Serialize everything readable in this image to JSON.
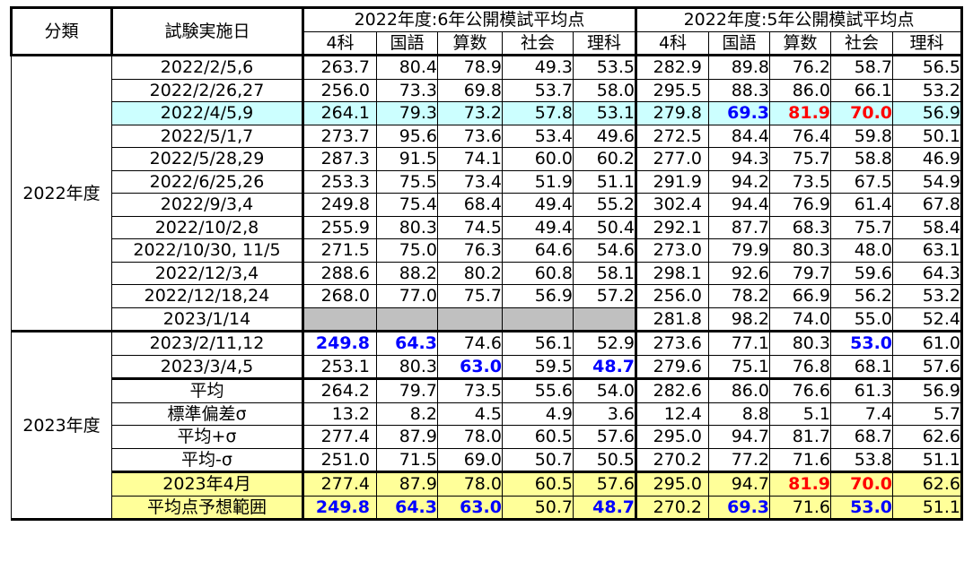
{
  "headers": {
    "category": "分類",
    "date": "試験実施日",
    "group6": "2022年度:6年公開模試平均点",
    "group5": "2022年度:5年公開模試平均点",
    "subjects": [
      "4科",
      "国語",
      "算数",
      "社会",
      "理科"
    ]
  },
  "colors": {
    "highlight_row": "#ccffff",
    "prediction_rows": "#ffff99",
    "blank_cell": "#c0c0c0",
    "low_value": "#0000ff",
    "high_value": "#ff0000"
  },
  "categories": {
    "fy2022": "2022年度",
    "fy2023": "2023年度"
  },
  "rows": [
    {
      "date": "2022/2/5,6",
      "g6": [
        "263.7",
        "80.4",
        "78.9",
        "49.3",
        "53.5"
      ],
      "g5": [
        "282.9",
        "89.8",
        "76.2",
        "58.7",
        "56.5"
      ]
    },
    {
      "date": "2022/2/26,27",
      "g6": [
        "256.0",
        "73.3",
        "69.8",
        "53.7",
        "58.0"
      ],
      "g5": [
        "295.5",
        "88.3",
        "86.0",
        "66.1",
        "53.2"
      ]
    },
    {
      "date": "2022/4/5,9",
      "g6": [
        "264.1",
        "79.3",
        "73.2",
        "57.8",
        "53.1"
      ],
      "g5": [
        "279.8",
        "69.3",
        "81.9",
        "70.0",
        "56.9"
      ],
      "highlight": true
    },
    {
      "date": "2022/5/1,7",
      "g6": [
        "273.7",
        "95.6",
        "73.6",
        "53.4",
        "49.6"
      ],
      "g5": [
        "272.5",
        "84.4",
        "76.4",
        "59.8",
        "50.1"
      ]
    },
    {
      "date": "2022/5/28,29",
      "g6": [
        "287.3",
        "91.5",
        "74.1",
        "60.0",
        "60.2"
      ],
      "g5": [
        "277.0",
        "94.3",
        "75.7",
        "58.8",
        "46.9"
      ]
    },
    {
      "date": "2022/6/25,26",
      "g6": [
        "253.3",
        "75.5",
        "73.4",
        "51.9",
        "51.1"
      ],
      "g5": [
        "291.9",
        "94.2",
        "73.5",
        "67.5",
        "54.9"
      ]
    },
    {
      "date": "2022/9/3,4",
      "g6": [
        "249.8",
        "75.4",
        "68.4",
        "49.4",
        "55.2"
      ],
      "g5": [
        "302.4",
        "94.4",
        "76.9",
        "61.4",
        "67.8"
      ]
    },
    {
      "date": "2022/10/2,8",
      "g6": [
        "255.9",
        "80.3",
        "74.5",
        "49.4",
        "50.4"
      ],
      "g5": [
        "292.1",
        "87.7",
        "68.3",
        "75.7",
        "58.4"
      ]
    },
    {
      "date": "2022/10/30, 11/5",
      "g6": [
        "271.5",
        "75.0",
        "76.3",
        "64.6",
        "54.6"
      ],
      "g5": [
        "273.0",
        "79.9",
        "80.3",
        "48.0",
        "63.1"
      ]
    },
    {
      "date": "2022/12/3,4",
      "g6": [
        "288.6",
        "88.2",
        "80.2",
        "60.8",
        "58.1"
      ],
      "g5": [
        "298.1",
        "92.6",
        "79.7",
        "59.6",
        "64.3"
      ]
    },
    {
      "date": "2022/12/18,24",
      "g6": [
        "268.0",
        "77.0",
        "75.7",
        "56.9",
        "57.2"
      ],
      "g5": [
        "256.0",
        "78.2",
        "66.9",
        "56.2",
        "53.2"
      ]
    },
    {
      "date": "2023/1/14",
      "g6": [
        "",
        "",
        "",
        "",
        ""
      ],
      "g5": [
        "281.8",
        "98.2",
        "74.0",
        "55.0",
        "52.4"
      ]
    },
    {
      "date": "2023/2/11,12",
      "g6": [
        "249.8",
        "64.3",
        "74.6",
        "56.1",
        "52.9"
      ],
      "g5": [
        "273.6",
        "77.1",
        "80.3",
        "53.0",
        "61.0"
      ]
    },
    {
      "date": "2023/3/4,5",
      "g6": [
        "253.1",
        "80.3",
        "63.0",
        "59.5",
        "48.7"
      ],
      "g5": [
        "279.6",
        "75.1",
        "76.8",
        "68.1",
        "57.6"
      ]
    },
    {
      "date": "平均",
      "g6": [
        "264.2",
        "79.7",
        "73.5",
        "55.6",
        "54.0"
      ],
      "g5": [
        "282.6",
        "86.0",
        "76.6",
        "61.3",
        "56.9"
      ]
    },
    {
      "date": "標準偏差σ",
      "g6": [
        "13.2",
        "8.2",
        "4.5",
        "4.9",
        "3.6"
      ],
      "g5": [
        "12.4",
        "8.8",
        "5.1",
        "7.4",
        "5.7"
      ]
    },
    {
      "date": "平均+σ",
      "g6": [
        "277.4",
        "87.9",
        "78.0",
        "60.5",
        "57.6"
      ],
      "g5": [
        "295.0",
        "94.7",
        "81.7",
        "68.7",
        "62.6"
      ]
    },
    {
      "date": "平均-σ",
      "g6": [
        "251.0",
        "71.5",
        "69.0",
        "50.7",
        "50.5"
      ],
      "g5": [
        "270.2",
        "77.2",
        "71.6",
        "53.8",
        "51.1"
      ]
    },
    {
      "date": "2023年4月",
      "g6": [
        "277.4",
        "87.9",
        "78.0",
        "60.5",
        "57.6"
      ],
      "g5": [
        "295.0",
        "94.7",
        "81.9",
        "70.0",
        "62.6"
      ],
      "prediction": true
    },
    {
      "date": "平均点予想範囲",
      "g6": [
        "249.8",
        "64.3",
        "63.0",
        "50.7",
        "48.7"
      ],
      "g5": [
        "270.2",
        "69.3",
        "71.6",
        "53.0",
        "51.1"
      ],
      "prediction": true
    }
  ],
  "emphasis": {
    "blue_bold": [
      "2.g5.1",
      "12.g6.0",
      "12.g6.1",
      "12.g5.3",
      "13.g6.2",
      "13.g6.4",
      "19.g6.0",
      "19.g6.1",
      "19.g6.2",
      "19.g6.4",
      "19.g5.1",
      "19.g5.3"
    ],
    "red_bold": [
      "2.g5.2",
      "2.g5.3",
      "18.g5.2",
      "18.g5.3"
    ]
  }
}
